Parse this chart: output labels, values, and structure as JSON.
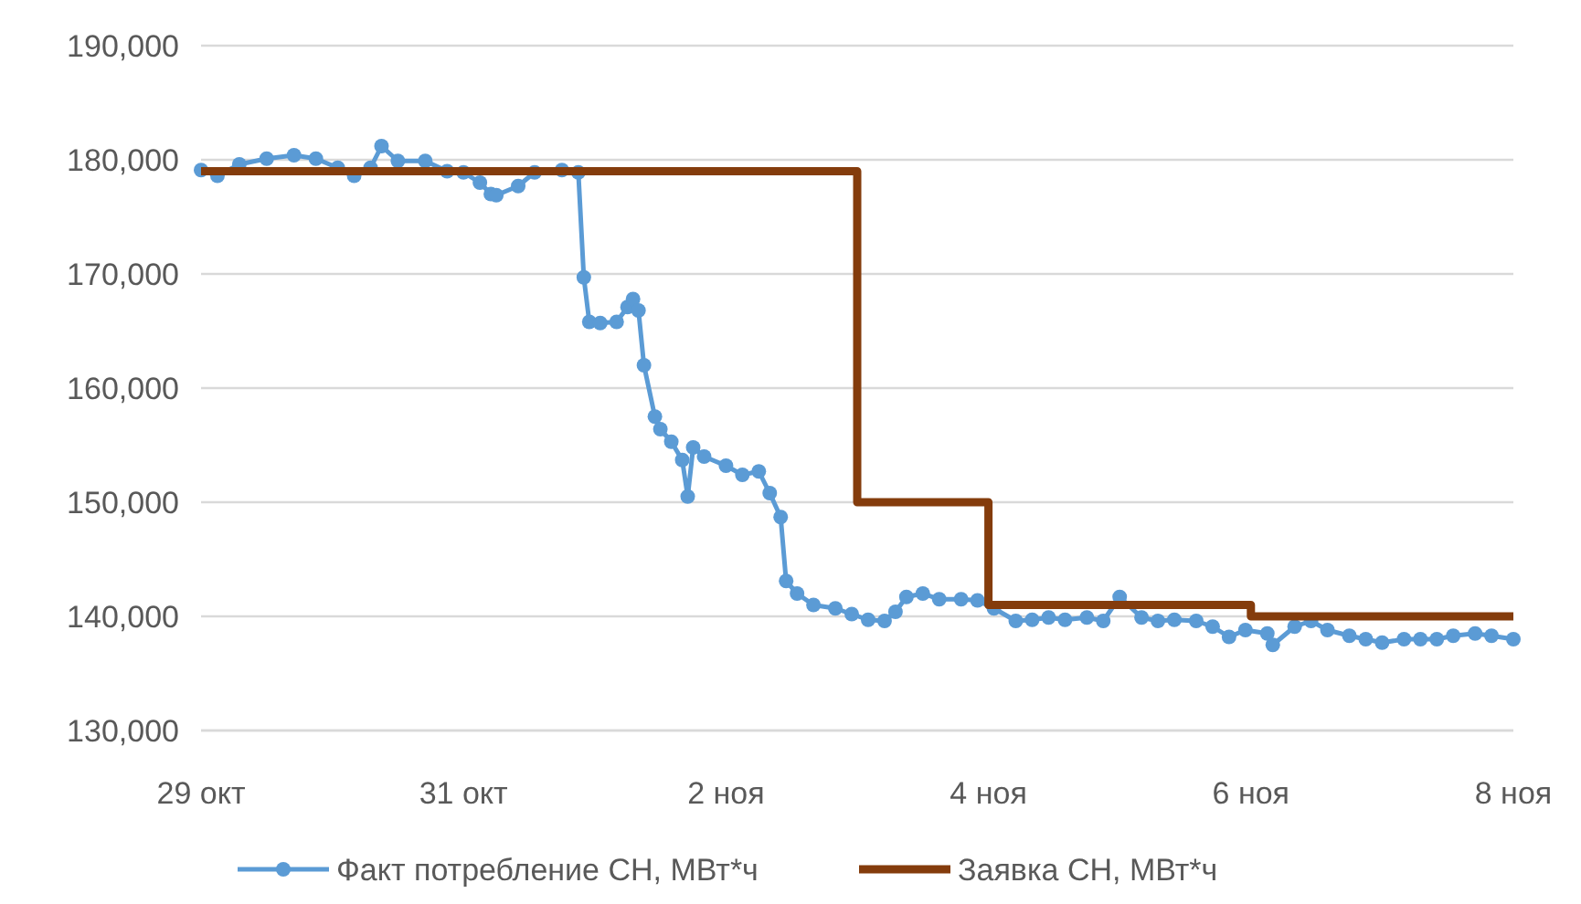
{
  "chart_data": {
    "type": "line",
    "xlim": [
      "--10-29",
      "--11-08"
    ],
    "xticks": [
      {
        "value": "--10-29",
        "label": "29 окт"
      },
      {
        "value": "--10-31",
        "label": "31 окт"
      },
      {
        "value": "--11-02",
        "label": "2 ноя"
      },
      {
        "value": "--11-04",
        "label": "4 ноя"
      },
      {
        "value": "--11-06",
        "label": "6 ноя"
      },
      {
        "value": "--11-08",
        "label": "8 ноя"
      }
    ],
    "ylim": [
      130000,
      190000
    ],
    "yticks": [
      {
        "value": 130000,
        "label": "130,000"
      },
      {
        "value": 140000,
        "label": "140,000"
      },
      {
        "value": 150000,
        "label": "150,000"
      },
      {
        "value": 160000,
        "label": "160,000"
      },
      {
        "value": 170000,
        "label": "170,000"
      },
      {
        "value": 180000,
        "label": "180,000"
      },
      {
        "value": 190000,
        "label": "190,000"
      }
    ],
    "grid": "y",
    "legend": "bottom",
    "series": [
      {
        "name": "Факт потребление СН, МВт*ч",
        "color": "#5b9bd5",
        "type": "line",
        "marker": "circle",
        "x": [
          "--10-29T00:00",
          "--10-29T03:00",
          "--10-29T07:00",
          "--10-29T12:00",
          "--10-29T17:00",
          "--10-29T21:00",
          "--10-30T01:00",
          "--10-30T04:00",
          "--10-30T07:00",
          "--10-30T09:00",
          "--10-30T12:00",
          "--10-30T17:00",
          "--10-30T21:00",
          "--10-31T00:00",
          "--10-31T03:00",
          "--10-31T05:00",
          "--10-31T06:00",
          "--10-31T10:00",
          "--10-31T13:00",
          "--10-31T18:00",
          "--10-31T21:00",
          "--10-31T22:00",
          "--10-31T23:00",
          "--11-01T01:00",
          "--11-01T04:00",
          "--11-01T06:00",
          "--11-01T07:00",
          "--11-01T08:00",
          "--11-01T09:00",
          "--11-01T11:00",
          "--11-01T12:00",
          "--11-01T14:00",
          "--11-01T16:00",
          "--11-01T17:00",
          "--11-01T18:00",
          "--11-01T20:00",
          "--11-02T00:00",
          "--11-02T03:00",
          "--11-02T06:00",
          "--11-02T08:00",
          "--11-02T10:00",
          "--11-02T11:00",
          "--11-02T13:00",
          "--11-02T16:00",
          "--11-02T20:00",
          "--11-02T23:00",
          "--11-03T02:00",
          "--11-03T05:00",
          "--11-03T07:00",
          "--11-03T09:00",
          "--11-03T12:00",
          "--11-03T15:00",
          "--11-03T19:00",
          "--11-03T22:00",
          "--11-04T01:00",
          "--11-04T05:00",
          "--11-04T08:00",
          "--11-04T11:00",
          "--11-04T14:00",
          "--11-04T18:00",
          "--11-04T21:00",
          "--11-05T00:00",
          "--11-05T04:00",
          "--11-05T07:00",
          "--11-05T10:00",
          "--11-05T14:00",
          "--11-05T17:00",
          "--11-05T20:00",
          "--11-05T23:00",
          "--11-06T03:00",
          "--11-06T04:00",
          "--11-06T08:00",
          "--11-06T11:00",
          "--11-06T14:00",
          "--11-06T18:00",
          "--11-06T21:00",
          "--11-07T00:00",
          "--11-07T04:00",
          "--11-07T07:00",
          "--11-07T10:00",
          "--11-07T13:00",
          "--11-07T17:00",
          "--11-07T20:00",
          "--11-08T00:00"
        ],
        "values": [
          179100,
          178600,
          179600,
          180100,
          180400,
          180100,
          179300,
          178600,
          179300,
          181200,
          179900,
          179900,
          179000,
          178900,
          178000,
          177000,
          176900,
          177700,
          178900,
          179100,
          178900,
          169700,
          165800,
          165700,
          165800,
          167100,
          167800,
          166800,
          162000,
          157500,
          156400,
          155300,
          153700,
          150500,
          154800,
          154000,
          153200,
          152400,
          152700,
          150800,
          148700,
          143100,
          142000,
          141000,
          140700,
          140200,
          139700,
          139600,
          140400,
          141700,
          142000,
          141500,
          141500,
          141400,
          140700,
          139600,
          139700,
          139900,
          139700,
          139900,
          139600,
          141700,
          139900,
          139600,
          139700,
          139600,
          139100,
          138200,
          138800,
          138500,
          137500,
          139100,
          139600,
          138800,
          138300,
          138000,
          137700,
          138000,
          138000,
          138000,
          138300,
          138500,
          138300,
          138000
        ]
      },
      {
        "name": "Заявка СН, МВт*ч",
        "color": "#843c0c",
        "type": "step",
        "marker": "none",
        "x": [
          "--10-29",
          "--11-03",
          "--11-04",
          "--11-06",
          "--11-08"
        ],
        "values": [
          179000,
          150000,
          141000,
          140000,
          140000
        ]
      }
    ]
  }
}
